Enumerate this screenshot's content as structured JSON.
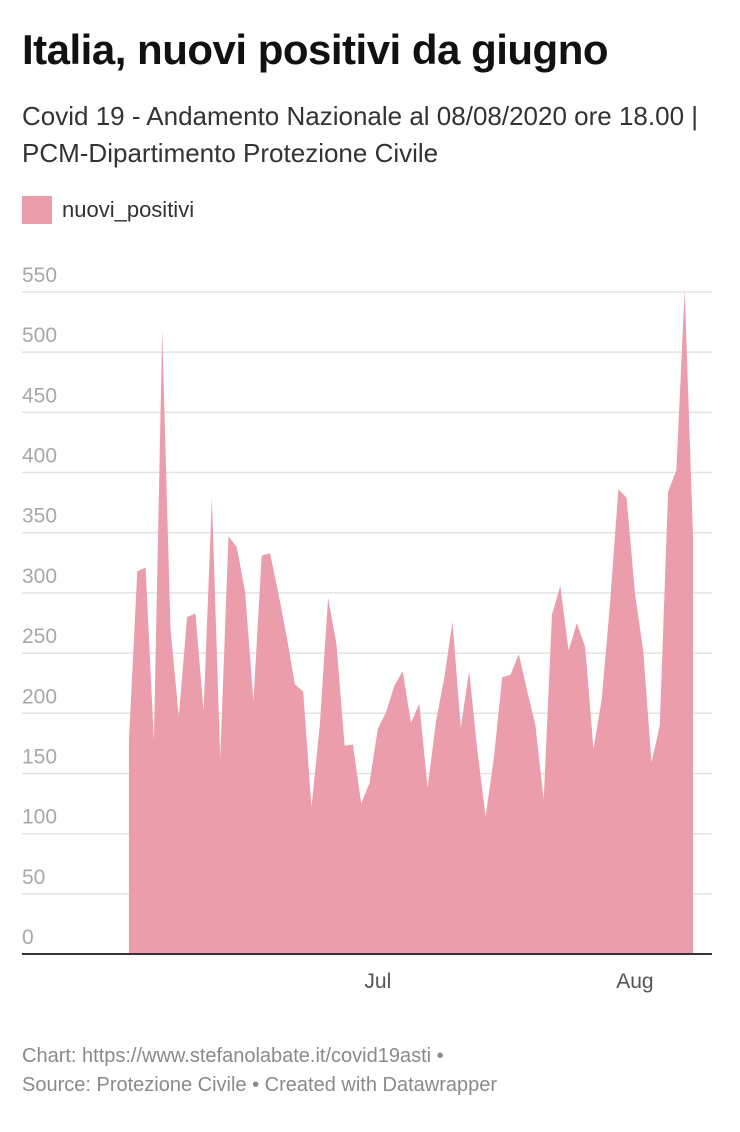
{
  "header": {
    "title": "Italia, nuovi positivi da giugno",
    "subtitle": "Covid 19 - Andamento Nazionale al 08/08/2020 ore 18.00 | PCM-Dipartimento Protezione Civile"
  },
  "footer": {
    "chart_line": "Chart: https://www.stefanolabate.it/covid19asti •",
    "source_line": "Source: Protezione Civile • Created with Datawrapper"
  },
  "colors": {
    "area": "#eb9dac",
    "grid": "#e3e3e3",
    "axis": "#333333"
  },
  "chart_data": {
    "type": "area",
    "title": "Italia, nuovi positivi da giugno",
    "legend": {
      "position": "top-left",
      "entries": [
        "nuovi_positivi"
      ]
    },
    "grid": true,
    "ylim": [
      0,
      550
    ],
    "y_ticks": [
      0,
      50,
      100,
      150,
      200,
      250,
      300,
      350,
      400,
      450,
      500,
      550
    ],
    "x_ticks": [
      {
        "date": "2020-07-01",
        "label": "Jul"
      },
      {
        "date": "2020-08-01",
        "label": "Aug"
      }
    ],
    "x_start": "2020-06-01",
    "x_end": "2020-08-08",
    "series": [
      {
        "name": "nuovi_positivi",
        "values": [
          178,
          318,
          321,
          177,
          518,
          270,
          197,
          280,
          283,
          202,
          379,
          163,
          347,
          338,
          301,
          210,
          331,
          333,
          300,
          264,
          224,
          218,
          122,
          190,
          296,
          258,
          173,
          174,
          125,
          142,
          187,
          201,
          223,
          235,
          192,
          208,
          138,
          193,
          229,
          276,
          188,
          235,
          169,
          114,
          163,
          230,
          232,
          249,
          219,
          190,
          128,
          282,
          306,
          252,
          275,
          255,
          170,
          212,
          292,
          386,
          379,
          300,
          252,
          159,
          190,
          384,
          402,
          552,
          347
        ]
      }
    ]
  }
}
